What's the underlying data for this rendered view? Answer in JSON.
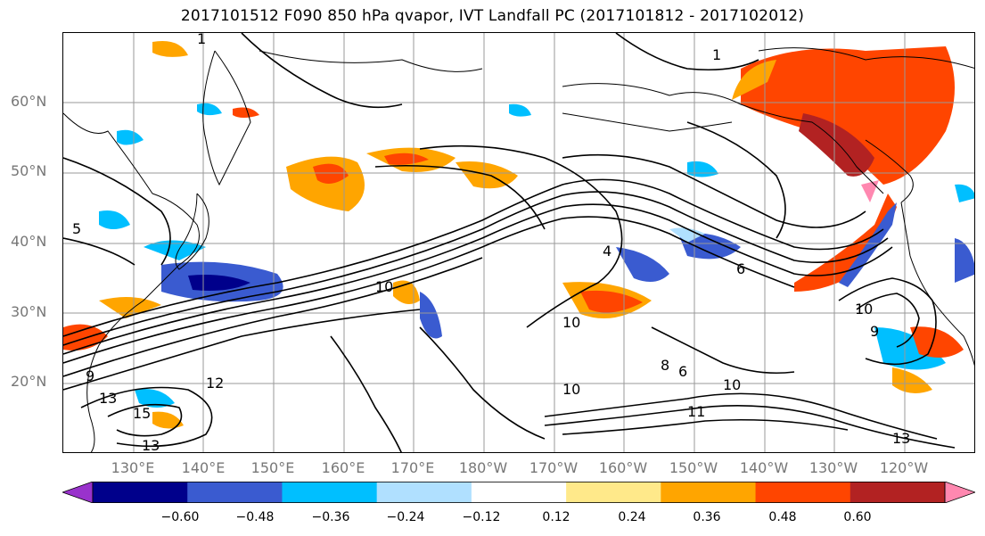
{
  "title": "2017101512 F090 850 hPa qvapor, IVT Landfall PC (2017101812 - 2017102012)",
  "map": {
    "lat_labels": [
      "60°N",
      "50°N",
      "40°N",
      "30°N",
      "20°N"
    ],
    "lon_labels": [
      "130°E",
      "140°E",
      "150°E",
      "160°E",
      "170°E",
      "180°W",
      "170°W",
      "160°W",
      "150°W",
      "140°W",
      "130°W",
      "120°W"
    ],
    "contour_labels": [
      "1",
      "1",
      "5",
      "9",
      "13",
      "15",
      "13",
      "12",
      "10",
      "10",
      "10",
      "4",
      "8",
      "6",
      "10",
      "11",
      "13",
      "6",
      "9",
      "10"
    ]
  },
  "colorbar": {
    "colors": [
      "#9932cc",
      "#00008b",
      "#3a5bd0",
      "#00bfff",
      "#b0e0ff",
      "#ffffff",
      "#ffe98a",
      "#ffa500",
      "#ff4500",
      "#b22222",
      "#ff88b0"
    ],
    "ticks": [
      "−0.60",
      "−0.48",
      "−0.36",
      "−0.24",
      "−0.12",
      "0.12",
      "0.24",
      "0.36",
      "0.48",
      "0.60"
    ]
  }
}
